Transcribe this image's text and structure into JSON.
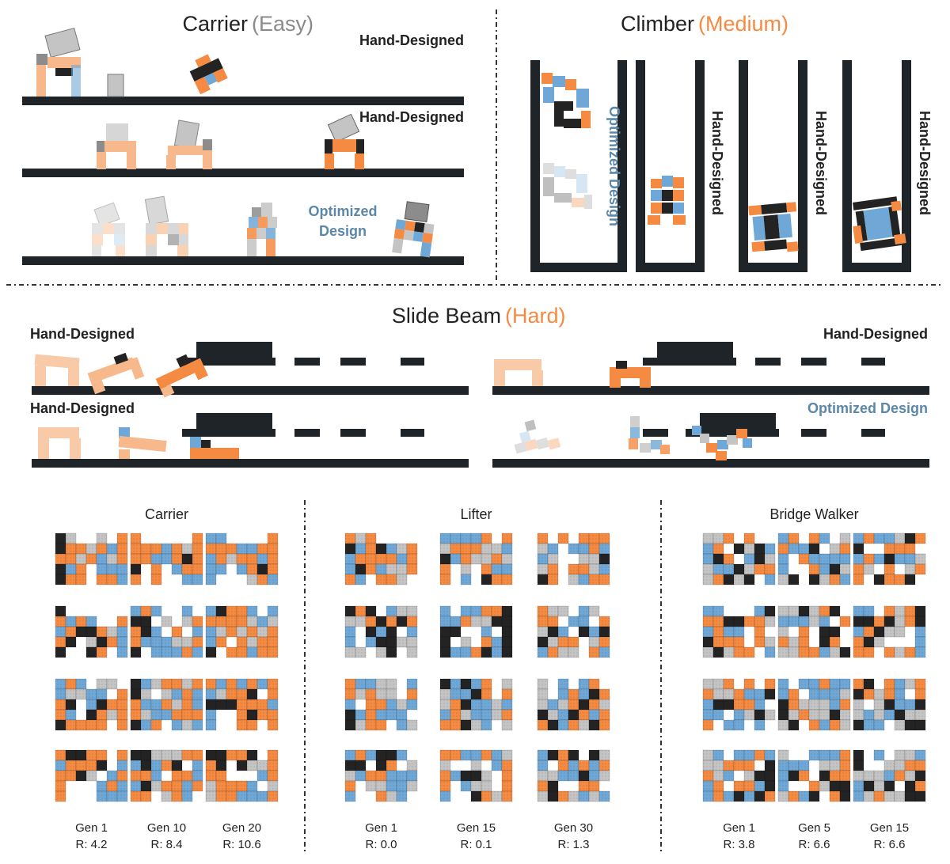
{
  "colors": {
    "orange": "#f58a42",
    "orange_light": "#f7b98c",
    "blue": "#6fa8d6",
    "blue_light": "#b7d3ea",
    "gray": "#c4c4c4",
    "gray_dark": "#8c8c8c",
    "black": "#232323",
    "ground": "#1f2428",
    "optimized_text": "#5b87a8",
    "easy_text": "#8a8a8a",
    "medium_text": "#f58a42",
    "hard_text": "#f58a42"
  },
  "palette_keys": [
    "empty",
    "orange",
    "blue",
    "gray",
    "black"
  ],
  "panels": {
    "carrier_top": {
      "title": "Carrier",
      "difficulty": "(Easy)",
      "labels": [
        "Hand-Designed",
        "Hand-Designed",
        "Optimized",
        "Design"
      ]
    },
    "climber": {
      "title": "Climber",
      "difficulty": "(Medium)",
      "labels": [
        "Optimized Design",
        "Hand-Designed",
        "Hand-Designed",
        "Hand-Designed"
      ]
    },
    "slide_beam": {
      "title": "Slide Beam",
      "difficulty": "(Hard)",
      "labels": [
        "Hand-Designed",
        "Hand-Designed",
        "Hand-Designed",
        "Optimized Design"
      ]
    }
  },
  "evolution": [
    {
      "title": "Carrier",
      "generations": [
        {
          "gen": "Gen 1",
          "reward": "R: 4.2"
        },
        {
          "gen": "Gen 10",
          "reward": "R: 8.4"
        },
        {
          "gen": "Gen 20",
          "reward": "R: 10.6"
        }
      ],
      "grids": [
        [
          "4300301",
          "4113121",
          "1131231",
          "4210222",
          "4110112"
        ],
        [
          "1000001",
          "1112131",
          "1122141",
          "4010211",
          "1010022"
        ],
        [
          "2200001",
          "1112211",
          "2131121",
          "2202141",
          "2000312"
        ],
        [
          "4000000",
          "1212001",
          "2144132",
          "1403412",
          "4004102"
        ],
        [
          "2120020",
          "4403031",
          "1420102",
          "1222331",
          "4022212"
        ],
        [
          "2411202",
          "1111323",
          "2313131",
          "2101311",
          "4011211"
        ],
        [
          "2120330",
          "2332201",
          "1402411",
          "1204131",
          "4111101"
        ],
        [
          "4231131",
          "4303212",
          "1221312",
          "1322111",
          "4210232"
        ],
        [
          "1212121",
          "2311401",
          "4441112",
          "2001411",
          "2001101"
        ],
        [
          "1441101",
          "2111402",
          "1143021",
          "1000212",
          "1000222"
        ],
        [
          "4433311",
          "2421402",
          "1120112",
          "2431121",
          "1103120"
        ],
        [
          "4411401",
          "1404331",
          "1100021",
          "3111203",
          "3112221"
        ]
      ]
    },
    {
      "title": "Lifter",
      "generations": [
        {
          "gen": "Gen 1",
          "reward": "R: 0.0"
        },
        {
          "gen": "Gen 15",
          "reward": "R: 0.1"
        },
        {
          "gen": "Gen 30",
          "reward": "R: 1.3"
        }
      ],
      "grids": [
        [
          "1310000",
          "4214231",
          "2111121",
          "2412331",
          "1201130"
        ],
        [
          "2222101",
          "3111332",
          "4213313",
          "1030122",
          "1020411"
        ],
        [
          "1010111",
          "3202212",
          "2300334",
          "3101132",
          "4103211"
        ],
        [
          "4140233",
          "3314141",
          "2042402",
          "2024433",
          "3303403"
        ],
        [
          "2022114",
          "2213344",
          "4400204",
          "4030124",
          "4221424"
        ],
        [
          "1330230",
          "1102201",
          "3420424",
          "4311031",
          "2133012"
        ],
        [
          "1223302",
          "1313301",
          "2011232",
          "4212220",
          "4311023"
        ],
        [
          "4242103",
          "3224101",
          "3142232",
          "2132231",
          "1143203"
        ],
        [
          "3020210",
          "3021241",
          "3231413",
          "4324121",
          "1421341"
        ],
        [
          "2124420",
          "4404103",
          "3211222",
          "1033223",
          "2001320"
        ],
        [
          "1122123",
          "3003021",
          "1244301",
          "1023301",
          "2004131"
        ],
        [
          "2414043",
          "2012121",
          "3322423",
          "1400110",
          "3413232"
        ]
      ]
    },
    {
      "title": "Bridge Walker",
      "generations": [
        {
          "gen": "Gen 1",
          "reward": "R: 3.8"
        },
        {
          "gen": "Gen 5",
          "reward": "R: 6.6"
        },
        {
          "gen": "Gen 15",
          "reward": "R: 6.6"
        }
      ],
      "grids": [
        [
          "3310100",
          "2104342",
          "2410243",
          "3224311",
          "3143402"
        ],
        [
          "2101203",
          "1224031",
          "2012222",
          "2001243",
          "3404312"
        ],
        [
          "2122341",
          "4001110",
          "2124223",
          "1301031",
          "1041140"
        ],
        [
          "2200024",
          "1144113",
          "2122010",
          "4111013",
          "3431102"
        ],
        [
          "3343140",
          "2223201",
          "3010440",
          "1310410",
          "3311234"
        ],
        [
          "2201314",
          "4414314",
          "2143302",
          "1430002",
          "1101312"
        ],
        [
          "3310101",
          "1331224",
          "2441120",
          "2202343",
          "1022020"
        ],
        [
          "2022122",
          "2102223",
          "4133321",
          "4313343",
          "3401213"
        ],
        [
          "1401231",
          "4131201",
          "3034224",
          "3232433",
          "4220344"
        ],
        [
          "3202212",
          "3311104",
          "1320344",
          "2101124",
          "2124241"
        ],
        [
          "3002221",
          "2220331",
          "2410411",
          "2001344",
          "3124014"
        ],
        [
          "4020332",
          "4003311",
          "3332134",
          "2434041",
          "2313344"
        ]
      ]
    }
  ]
}
